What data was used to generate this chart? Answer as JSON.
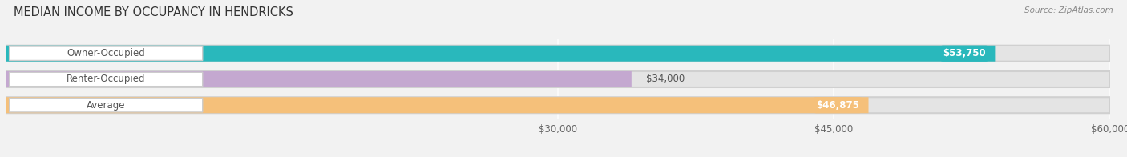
{
  "title": "MEDIAN INCOME BY OCCUPANCY IN HENDRICKS",
  "source": "Source: ZipAtlas.com",
  "categories": [
    "Owner-Occupied",
    "Renter-Occupied",
    "Average"
  ],
  "values": [
    53750,
    34000,
    46875
  ],
  "bar_colors": [
    "#29b8bc",
    "#c4a8d0",
    "#f5c07a"
  ],
  "value_labels": [
    "$53,750",
    "$34,000",
    "$46,875"
  ],
  "xlim": [
    0,
    60000
  ],
  "xticks": [
    30000,
    45000,
    60000
  ],
  "xtick_labels": [
    "$30,000",
    "$45,000",
    "$60,000"
  ],
  "title_fontsize": 10.5,
  "bar_height": 0.62,
  "background_color": "#f2f2f2",
  "bar_bg_color": "#e4e4e4"
}
